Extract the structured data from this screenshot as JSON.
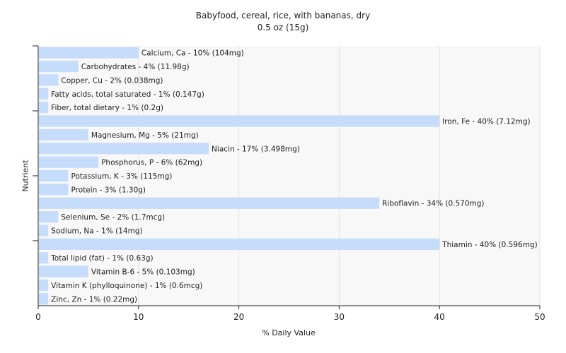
{
  "chart_data": {
    "type": "bar",
    "orientation": "horizontal",
    "title": "Babyfood, cereal, rice, with bananas, dry",
    "subtitle": "0.5 oz (15g)",
    "xlabel": "% Daily Value",
    "ylabel": "Nutrient",
    "xlim": [
      0,
      50
    ],
    "xticks": [
      0,
      10,
      20,
      30,
      40,
      50
    ],
    "grid": true,
    "bar_color": "#c6dcfb",
    "categories": [
      "Calcium, Ca",
      "Carbohydrates",
      "Copper, Cu",
      "Fatty acids, total saturated",
      "Fiber, total dietary",
      "Iron, Fe",
      "Magnesium, Mg",
      "Niacin",
      "Phosphorus, P",
      "Potassium, K",
      "Protein",
      "Riboflavin",
      "Selenium, Se",
      "Sodium, Na",
      "Thiamin",
      "Total lipid (fat)",
      "Vitamin B-6",
      "Vitamin K (phylloquinone)",
      "Zinc, Zn"
    ],
    "values": [
      10,
      4,
      2,
      1,
      1,
      40,
      5,
      17,
      6,
      3,
      3,
      34,
      2,
      1,
      40,
      1,
      5,
      1,
      1
    ],
    "labels": [
      "Calcium, Ca - 10% (104mg)",
      "Carbohydrates - 4% (11.98g)",
      "Copper, Cu - 2% (0.038mg)",
      "Fatty acids, total saturated - 1% (0.147g)",
      "Fiber, total dietary - 1% (0.2g)",
      "Iron, Fe - 40% (7.12mg)",
      "Magnesium, Mg - 5% (21mg)",
      "Niacin - 17% (3.498mg)",
      "Phosphorus, P - 6% (62mg)",
      "Potassium, K - 3% (115mg)",
      "Protein - 3% (1.30g)",
      "Riboflavin - 34% (0.570mg)",
      "Selenium, Se - 2% (1.7mcg)",
      "Sodium, Na - 1% (14mg)",
      "Thiamin - 40% (0.596mg)",
      "Total lipid (fat) - 1% (0.63g)",
      "Vitamin B-6 - 5% (0.103mg)",
      "Vitamin K (phylloquinone) - 1% (0.6mcg)",
      "Zinc, Zn - 1% (0.22mg)"
    ]
  }
}
